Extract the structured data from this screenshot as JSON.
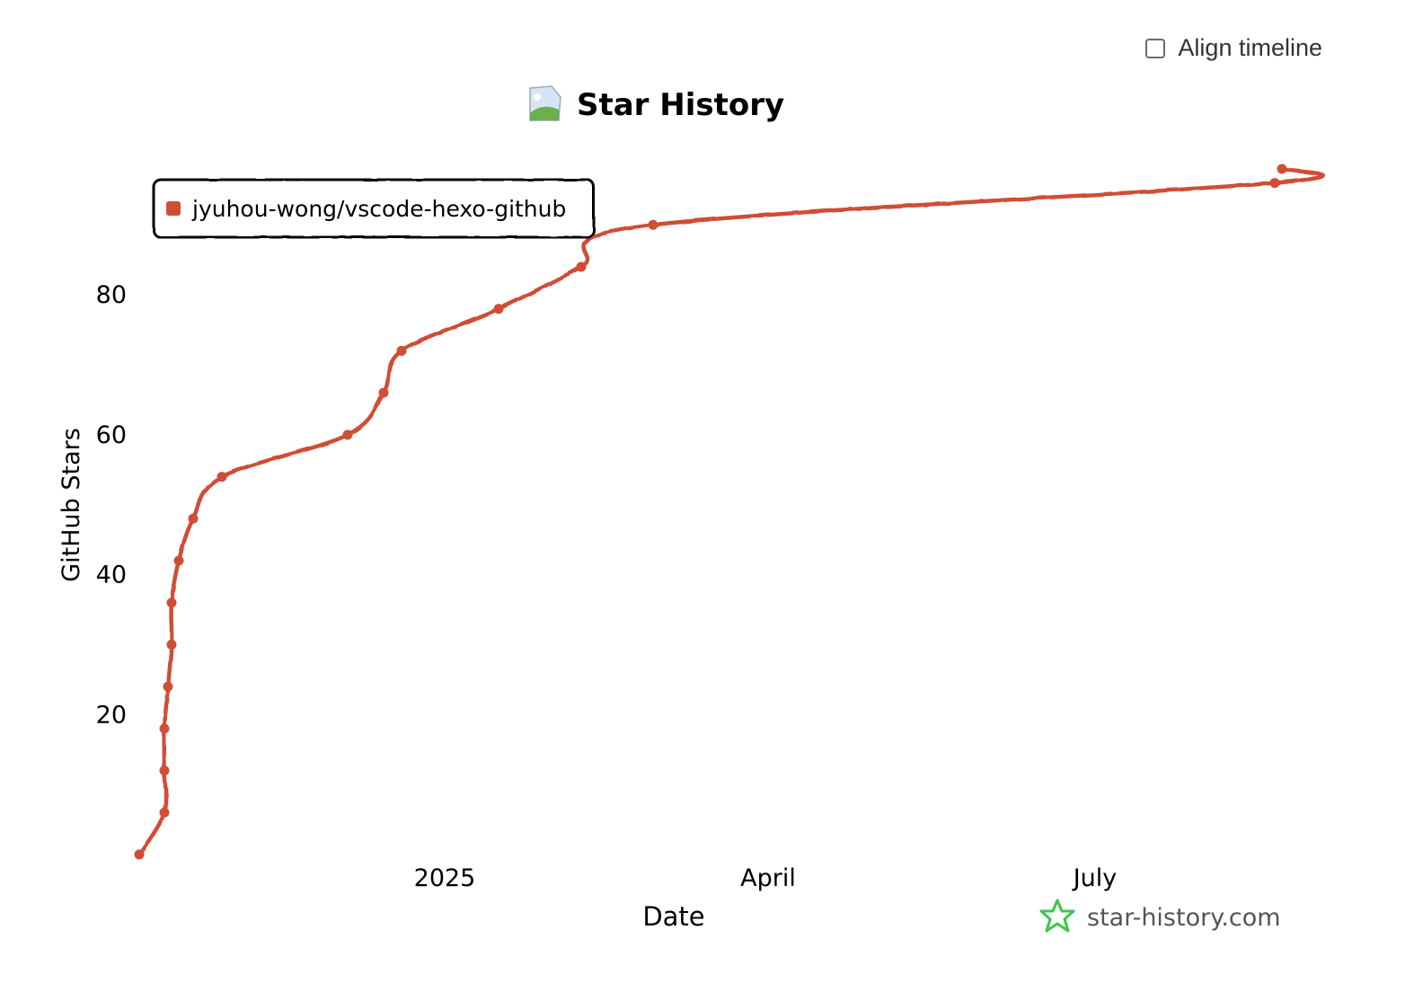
{
  "controls": {
    "align_timeline_label": "Align timeline",
    "align_timeline_checked": false
  },
  "watermark": {
    "text": "star-history.com"
  },
  "colors": {
    "series": "#d04d36",
    "axis": "#000000",
    "star": "#3fc64a"
  },
  "chart_data": {
    "type": "line",
    "title": "Star History",
    "xlabel": "Date",
    "ylabel": "GitHub Stars",
    "xlim": [
      "2024-10-08",
      "2025-08-22"
    ],
    "ylim": [
      0,
      98
    ],
    "yticks": [
      20,
      40,
      60,
      80
    ],
    "xticks": [
      {
        "date": "2025-01-01",
        "label": "2025"
      },
      {
        "date": "2025-04-01",
        "label": "April"
      },
      {
        "date": "2025-07-01",
        "label": "July"
      }
    ],
    "grid": false,
    "legend": "top-left",
    "series": [
      {
        "name": "jyuhou-wong/vscode-hexo-github",
        "points": [
          {
            "x": "2024-10-08",
            "y": 0
          },
          {
            "x": "2024-10-15",
            "y": 6
          },
          {
            "x": "2024-10-15",
            "y": 12
          },
          {
            "x": "2024-10-15",
            "y": 18
          },
          {
            "x": "2024-10-16",
            "y": 24
          },
          {
            "x": "2024-10-17",
            "y": 30
          },
          {
            "x": "2024-10-17",
            "y": 36
          },
          {
            "x": "2024-10-19",
            "y": 42
          },
          {
            "x": "2024-10-23",
            "y": 48
          },
          {
            "x": "2024-10-31",
            "y": 54
          },
          {
            "x": "2024-12-05",
            "y": 60
          },
          {
            "x": "2024-12-15",
            "y": 66
          },
          {
            "x": "2024-12-20",
            "y": 72
          },
          {
            "x": "2025-01-16",
            "y": 78
          },
          {
            "x": "2025-02-08",
            "y": 84
          },
          {
            "x": "2025-02-28",
            "y": 90
          },
          {
            "x": "2025-08-20",
            "y": 96
          },
          {
            "x": "2025-08-22",
            "y": 98
          }
        ]
      }
    ]
  }
}
